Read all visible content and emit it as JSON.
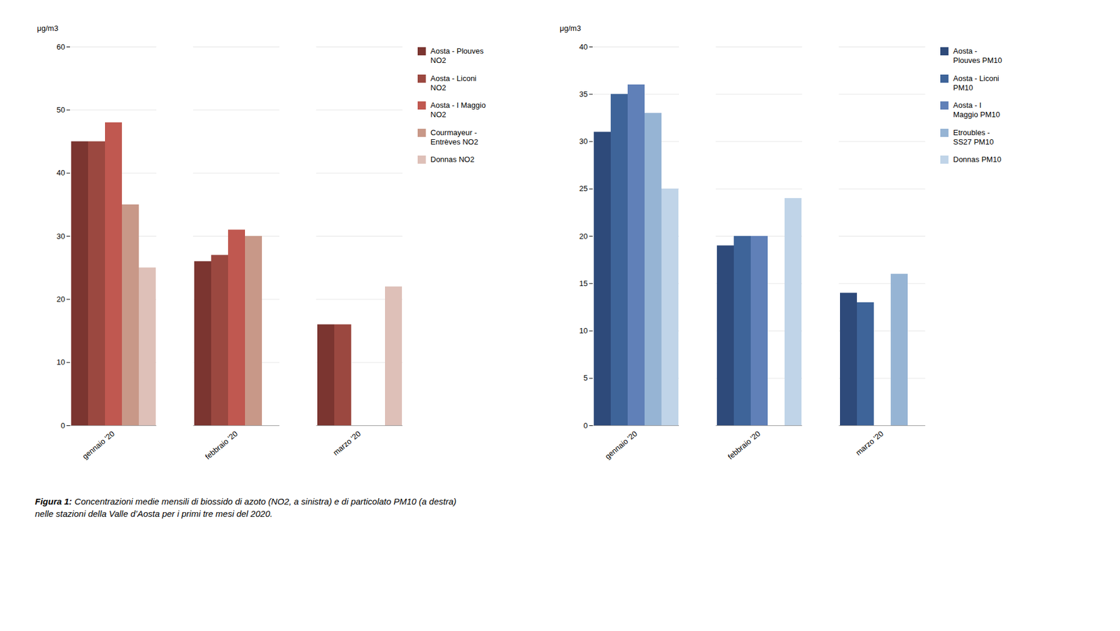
{
  "chart_data": [
    {
      "type": "bar",
      "categories": [
        "gennaio '20",
        "febbraio '20",
        "marzo '20"
      ],
      "series": [
        {
          "name": "Aosta - Plouves\nNO2",
          "color": "#7B3530",
          "values": [
            45,
            26,
            16
          ]
        },
        {
          "name": "Aosta - Liconi\nNO2",
          "color": "#9B4840",
          "values": [
            45,
            27,
            16
          ]
        },
        {
          "name": "Aosta - I Maggio\nNO2",
          "color": "#C05850",
          "values": [
            48,
            31,
            null
          ]
        },
        {
          "name": "Courmayeur -\nEntrèves NO2",
          "color": "#C89888",
          "values": [
            35,
            30,
            null
          ]
        },
        {
          "name": "Donnas NO2",
          "color": "#DEC0B8",
          "values": [
            25,
            null,
            22
          ]
        }
      ],
      "ylabel": "μg/m3",
      "ylim": [
        0,
        60
      ],
      "yticks": [
        0,
        10,
        20,
        30,
        40,
        50,
        60
      ],
      "grid": true,
      "legend": "right"
    },
    {
      "type": "bar",
      "categories": [
        "gennaio '20",
        "febbraio '20",
        "marzo '20"
      ],
      "series": [
        {
          "name": "Aosta -\nPlouves PM10",
          "color": "#2E4A7A",
          "values": [
            31,
            19,
            14
          ]
        },
        {
          "name": "Aosta - Liconi\nPM10",
          "color": "#3E6499",
          "values": [
            35,
            20,
            13
          ]
        },
        {
          "name": "Aosta - I\nMaggio PM10",
          "color": "#6080B8",
          "values": [
            36,
            20,
            null
          ]
        },
        {
          "name": "Etroubles -\nSS27 PM10",
          "color": "#96B4D4",
          "values": [
            33,
            null,
            16
          ]
        },
        {
          "name": "Donnas PM10",
          "color": "#C0D4E8",
          "values": [
            25,
            24,
            null
          ]
        }
      ],
      "ylabel": "μg/m3",
      "ylim": [
        0,
        40
      ],
      "yticks": [
        0,
        5,
        10,
        15,
        20,
        25,
        30,
        35,
        40
      ],
      "grid": true,
      "legend": "right"
    }
  ],
  "caption": [
    "Figura 1:",
    "Concentrazioni medie mensili di biossido di azoto (NO2, a sinistra) e di particolato PM10 (a destra)\nnelle stazioni della Valle d’Aosta per i primi tre mesi del 2020."
  ]
}
